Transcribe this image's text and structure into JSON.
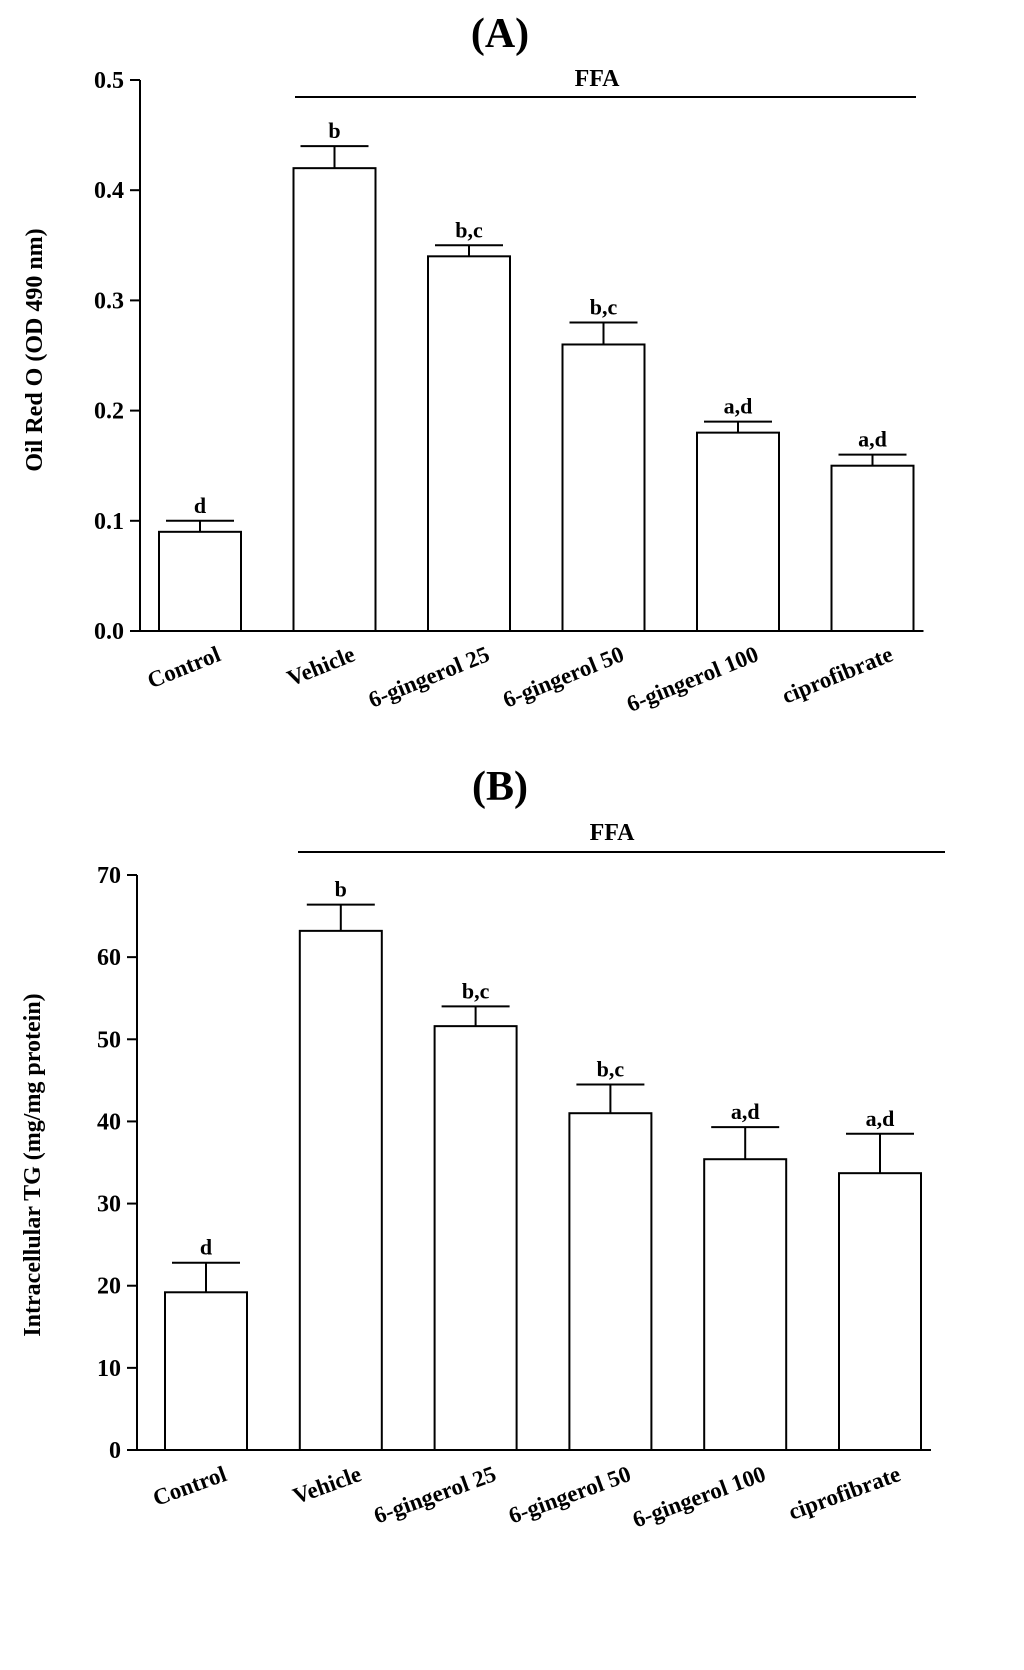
{
  "chart_data": [
    {
      "type": "bar",
      "panel_label": "(A)",
      "categories": [
        "Control",
        "Vehicle",
        "6-gingerol 25",
        "6-gingerol 50",
        "6-gingerol 100",
        "ciprofibrate"
      ],
      "values": [
        0.09,
        0.42,
        0.34,
        0.26,
        0.18,
        0.15
      ],
      "errors": [
        0.01,
        0.02,
        0.01,
        0.02,
        0.01,
        0.01
      ],
      "significance": [
        "d",
        "b",
        "b,c",
        "b,c",
        "a,d",
        "a,d"
      ],
      "ylabel": "Oil Red O (OD 490 nm)",
      "xlabel": "",
      "ylim": [
        0,
        0.5
      ],
      "yticks": [
        0.0,
        0.1,
        0.2,
        0.3,
        0.4,
        0.5
      ],
      "ytick_labels": [
        "0.0",
        "0.1",
        "0.2",
        "0.3",
        "0.4",
        "0.5"
      ],
      "group_label": "FFA",
      "group_from_category": 1,
      "grid": false
    },
    {
      "type": "bar",
      "panel_label": "(B)",
      "categories": [
        "Control",
        "Vehicle",
        "6-gingerol 25",
        "6-gingerol 50",
        "6-gingerol 100",
        "ciprofibrate"
      ],
      "values": [
        19.2,
        63.2,
        51.6,
        41.0,
        35.4,
        33.7
      ],
      "errors": [
        3.6,
        3.2,
        2.4,
        3.5,
        3.9,
        4.8
      ],
      "significance": [
        "d",
        "b",
        "b,c",
        "b,c",
        "a,d",
        "a,d"
      ],
      "ylabel": "Intracellular TG (mg/mg protein)",
      "xlabel": "",
      "ylim": [
        0,
        70
      ],
      "yticks": [
        0,
        10,
        20,
        30,
        40,
        50,
        60,
        70
      ],
      "ytick_labels": [
        "0",
        "10",
        "20",
        "30",
        "40",
        "50",
        "60",
        "70"
      ],
      "group_label": "FFA",
      "group_from_category": 1,
      "grid": false
    }
  ]
}
